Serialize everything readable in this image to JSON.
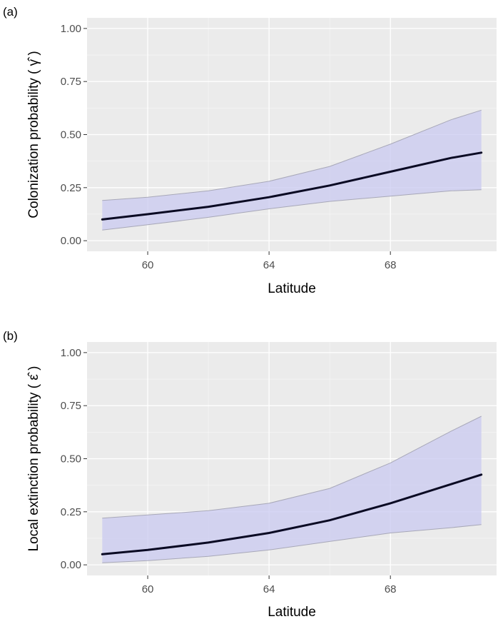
{
  "colors": {
    "panel_bg": "#ebebeb",
    "grid_major": "#ffffff",
    "ribbon_fill": "#c9c9f0",
    "ribbon_edge": "#a8a8b8",
    "line": "#0a0a23",
    "tick_text": "#4d4d4d"
  },
  "chart_data": [
    {
      "type": "line",
      "panel_label": "(a)",
      "xlabel": "Latitude",
      "ylabel": "Colonization probability ( γ̂ )",
      "xlim": [
        58,
        71.5
      ],
      "ylim": [
        -0.05,
        1.05
      ],
      "xticks": [
        60,
        64,
        68
      ],
      "xtick_labels": [
        "60",
        "64",
        "68"
      ],
      "yticks": [
        0,
        0.25,
        0.5,
        0.75,
        1
      ],
      "ytick_labels": [
        "0.00",
        "0.25",
        "0.50",
        "0.75",
        "1.00"
      ],
      "grid": true,
      "x": [
        58.5,
        60,
        62,
        64,
        66,
        68,
        70,
        71
      ],
      "series": [
        {
          "role": "estimate",
          "values": [
            0.1,
            0.125,
            0.16,
            0.205,
            0.26,
            0.325,
            0.39,
            0.415
          ]
        },
        {
          "role": "upper",
          "values": [
            0.19,
            0.205,
            0.235,
            0.28,
            0.35,
            0.455,
            0.57,
            0.615
          ]
        },
        {
          "role": "lower",
          "values": [
            0.05,
            0.075,
            0.11,
            0.15,
            0.185,
            0.21,
            0.235,
            0.24
          ]
        }
      ]
    },
    {
      "type": "line",
      "panel_label": "(b)",
      "xlabel": "Latitude",
      "ylabel": "Local extinction probability ( ε̂ )",
      "xlim": [
        58,
        71.5
      ],
      "ylim": [
        -0.05,
        1.05
      ],
      "xticks": [
        60,
        64,
        68
      ],
      "xtick_labels": [
        "60",
        "64",
        "68"
      ],
      "yticks": [
        0,
        0.25,
        0.5,
        0.75,
        1
      ],
      "ytick_labels": [
        "0.00",
        "0.25",
        "0.50",
        "0.75",
        "1.00"
      ],
      "grid": true,
      "x": [
        58.5,
        60,
        62,
        64,
        66,
        68,
        70,
        71
      ],
      "series": [
        {
          "role": "estimate",
          "values": [
            0.05,
            0.07,
            0.105,
            0.15,
            0.21,
            0.29,
            0.38,
            0.425
          ]
        },
        {
          "role": "upper",
          "values": [
            0.22,
            0.235,
            0.255,
            0.29,
            0.36,
            0.48,
            0.63,
            0.7
          ]
        },
        {
          "role": "lower",
          "values": [
            0.01,
            0.02,
            0.04,
            0.07,
            0.11,
            0.15,
            0.175,
            0.19
          ]
        }
      ]
    }
  ]
}
